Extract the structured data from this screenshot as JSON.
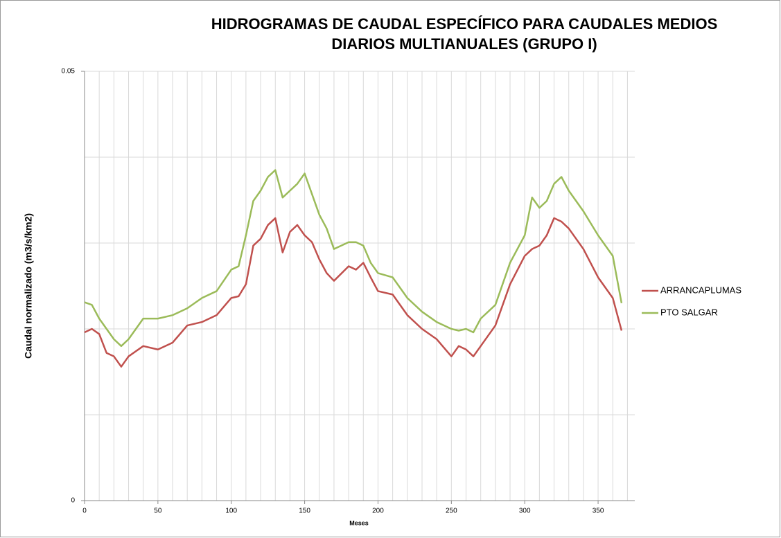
{
  "chart_data": {
    "type": "line",
    "title": "HIDROGRAMAS DE CAUDAL ESPECÍFICO PARA CAUDALES MEDIOS DIARIOS MULTIANUALES (GRUPO I)",
    "xlabel": "Meses",
    "ylabel": "Caudal normalizado (m3/s/km2)",
    "x": [
      0,
      5,
      10,
      15,
      20,
      25,
      30,
      40,
      50,
      60,
      70,
      80,
      90,
      100,
      105,
      110,
      115,
      120,
      125,
      130,
      135,
      140,
      145,
      150,
      155,
      160,
      165,
      170,
      180,
      185,
      190,
      195,
      200,
      210,
      220,
      230,
      240,
      250,
      255,
      260,
      265,
      270,
      280,
      290,
      300,
      305,
      310,
      315,
      320,
      325,
      330,
      340,
      350,
      360,
      366
    ],
    "series": [
      {
        "name": "ARRANCAPLUMAS",
        "color": "#c0504d",
        "values": [
          0.0196,
          0.02,
          0.0194,
          0.0172,
          0.0168,
          0.0156,
          0.0168,
          0.018,
          0.0176,
          0.0184,
          0.0204,
          0.0208,
          0.0216,
          0.0236,
          0.0238,
          0.0252,
          0.0297,
          0.0305,
          0.0321,
          0.0329,
          0.0289,
          0.0313,
          0.0321,
          0.0309,
          0.0301,
          0.0281,
          0.0265,
          0.0256,
          0.0273,
          0.0269,
          0.0277,
          0.026,
          0.0244,
          0.024,
          0.0216,
          0.02,
          0.0188,
          0.0168,
          0.018,
          0.0176,
          0.0168,
          0.018,
          0.0204,
          0.0252,
          0.0285,
          0.0293,
          0.0297,
          0.0309,
          0.0329,
          0.0325,
          0.0317,
          0.0293,
          0.026,
          0.0236,
          0.0198
        ]
      },
      {
        "name": "PTO SALGAR",
        "color": "#9bbb59",
        "values": [
          0.0231,
          0.0228,
          0.0212,
          0.02,
          0.0188,
          0.018,
          0.0188,
          0.0212,
          0.0212,
          0.0216,
          0.0224,
          0.0236,
          0.0244,
          0.0269,
          0.0273,
          0.0309,
          0.0349,
          0.0361,
          0.0377,
          0.0385,
          0.0353,
          0.0361,
          0.0369,
          0.0381,
          0.0357,
          0.0333,
          0.0317,
          0.0293,
          0.0301,
          0.0301,
          0.0297,
          0.0277,
          0.0265,
          0.026,
          0.0236,
          0.022,
          0.0208,
          0.02,
          0.0198,
          0.02,
          0.0196,
          0.0212,
          0.0228,
          0.0277,
          0.0309,
          0.0353,
          0.0341,
          0.0349,
          0.0369,
          0.0377,
          0.0361,
          0.0337,
          0.0309,
          0.0285,
          0.023
        ]
      }
    ],
    "xlim": [
      0,
      375
    ],
    "ylim": [
      0,
      0.05
    ],
    "xticks": [
      0,
      50,
      100,
      150,
      200,
      250,
      300,
      350
    ],
    "yticks": [
      0,
      0.05
    ],
    "xgrid": [
      10,
      20,
      30,
      40,
      50,
      60,
      70,
      80,
      90,
      100,
      110,
      120,
      130,
      140,
      150,
      160,
      170,
      180,
      190,
      200,
      210,
      220,
      230,
      240,
      250,
      260,
      270,
      280,
      290,
      300,
      310,
      320,
      330,
      340,
      350,
      360,
      370
    ],
    "ygrid": [
      0.01,
      0.02,
      0.03,
      0.04,
      0.05
    ],
    "legend": "right"
  }
}
